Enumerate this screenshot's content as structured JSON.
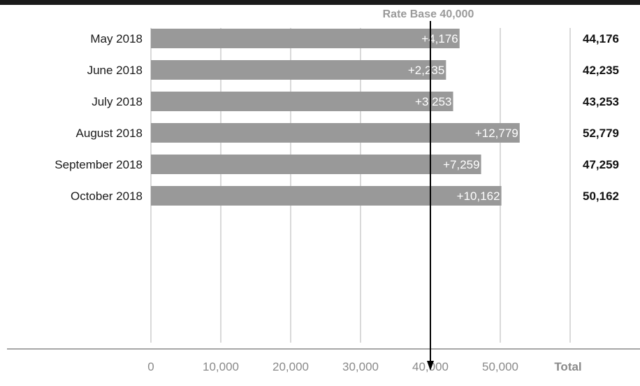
{
  "chart_data": {
    "type": "bar",
    "orientation": "horizontal",
    "categories": [
      "May 2018",
      "June 2018",
      "July 2018",
      "August 2018",
      "September 2018",
      "October 2018"
    ],
    "values": [
      44176,
      42235,
      43253,
      52779,
      47259,
      50162
    ],
    "increments": [
      "+4,176",
      "+2,235",
      "+3,253",
      "+12,779",
      "+7,259",
      "+10,162"
    ],
    "totals": [
      "44,176",
      "42,235",
      "43,253",
      "52,779",
      "47,259",
      "50,162"
    ],
    "xlim": [
      0,
      60000
    ],
    "x_ticks": [
      {
        "value": 0,
        "label": "0"
      },
      {
        "value": 10000,
        "label": "10,000"
      },
      {
        "value": 20000,
        "label": "20,000"
      },
      {
        "value": 30000,
        "label": "30,000"
      },
      {
        "value": 40000,
        "label": "40,000"
      },
      {
        "value": 50000,
        "label": "50,000"
      }
    ],
    "total_header": "Total",
    "reference_line": {
      "value": 40000,
      "label": "Rate Base 40,000"
    },
    "grid": true,
    "colors": {
      "bar": "#999999",
      "grid": "#b3b3b3",
      "reference": "#000000",
      "top_border": "#1a1a1a"
    }
  }
}
